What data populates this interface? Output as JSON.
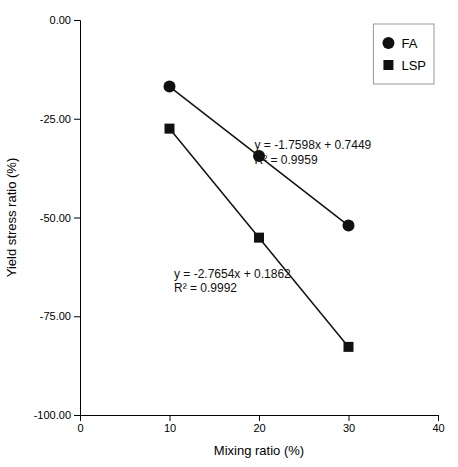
{
  "chart_data": {
    "type": "scatter",
    "xlabel": "Mixing ratio (%)",
    "ylabel": "Yield stress ratio (%)",
    "xlim": [
      0,
      40
    ],
    "ylim": [
      -100,
      0
    ],
    "xticks": [
      0,
      10,
      20,
      30,
      40
    ],
    "yticks": [
      {
        "value": 0.0,
        "label": "0.00"
      },
      {
        "value": -25.0,
        "label": "-25.00"
      },
      {
        "value": -50.0,
        "label": "-50.00"
      },
      {
        "value": -75.0,
        "label": "-75.00"
      },
      {
        "value": -100.0,
        "label": "-100.00"
      }
    ],
    "grid": false,
    "legend": "upper right",
    "series": [
      {
        "name": "FA",
        "type": "scatter",
        "marker": "circle",
        "color": "#111111",
        "x": [
          10,
          20,
          30
        ],
        "values": [
          -16.85,
          -34.45,
          -52.05
        ]
      },
      {
        "name": "LSP",
        "type": "scatter",
        "marker": "square",
        "color": "#111111",
        "x": [
          10,
          20,
          30
        ],
        "values": [
          -27.5,
          -55.1,
          -82.75
        ]
      },
      {
        "type": "line",
        "color": "#111111",
        "x": [
          10,
          30
        ],
        "values": [
          -16.8531,
          -52.0491
        ]
      },
      {
        "type": "line",
        "color": "#111111",
        "x": [
          10,
          30
        ],
        "values": [
          -27.4678,
          -82.7758
        ]
      }
    ],
    "annotations": [
      {
        "x": 19.5,
        "y": -33.5,
        "text": "y = -1.7598x + 0.7449\nR² = 0.9959"
      },
      {
        "x": 10.5,
        "y": -66.0,
        "text": "y = -2.7654x + 0.1862\nR² = 0.9992"
      }
    ]
  }
}
